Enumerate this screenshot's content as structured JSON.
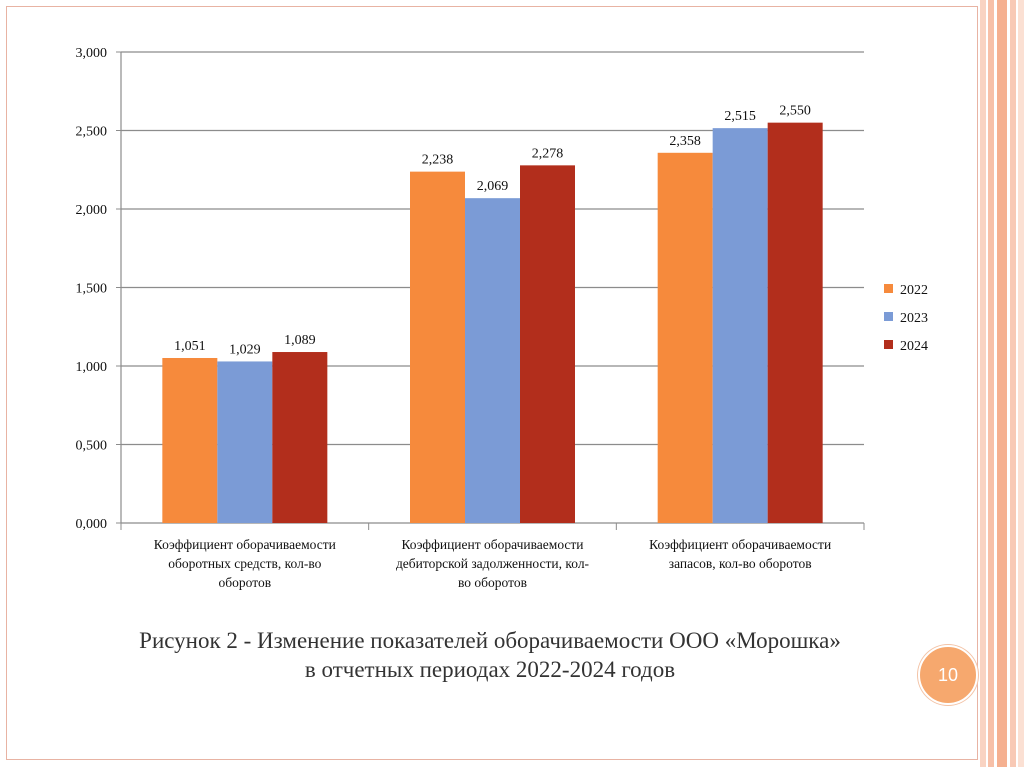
{
  "chart_data": {
    "type": "bar",
    "title": "",
    "xlabel": "",
    "ylabel": "",
    "ylim": [
      0,
      3
    ],
    "yticks": [
      0,
      0.5,
      1,
      1.5,
      2,
      2.5,
      3
    ],
    "ytick_labels": [
      "0,000",
      "0,500",
      "1,000",
      "1,500",
      "2,000",
      "2,500",
      "3,000"
    ],
    "grid": true,
    "legend_position": "right",
    "categories": [
      [
        "Коэффициент оборачиваемости",
        "оборотных средств, кол-во",
        "оборотов"
      ],
      [
        "Коэффициент оборачиваемости",
        "дебиторской задолженности, кол-",
        "во оборотов"
      ],
      [
        "Коэффициент оборачиваемости",
        "запасов, кол-во оборотов"
      ]
    ],
    "series": [
      {
        "name": "2022",
        "color": "#f68a3c",
        "values": [
          1.051,
          2.238,
          2.358
        ],
        "labels": [
          "1,051",
          "2,238",
          "2,358"
        ]
      },
      {
        "name": "2023",
        "color": "#7b9bd6",
        "values": [
          1.029,
          2.069,
          2.515
        ],
        "labels": [
          "1,029",
          "2,069",
          "2,515"
        ]
      },
      {
        "name": "2024",
        "color": "#b22e1c",
        "values": [
          1.089,
          2.278,
          2.55
        ],
        "labels": [
          "1,089",
          "2,278",
          "2,550"
        ]
      }
    ]
  },
  "caption": {
    "line1": "Рисунок 2 - Изменение показателей оборачиваемости ООО «Морошка»",
    "line2": "в отчетных периодах 2022-2024 годов"
  },
  "page_number": "10"
}
